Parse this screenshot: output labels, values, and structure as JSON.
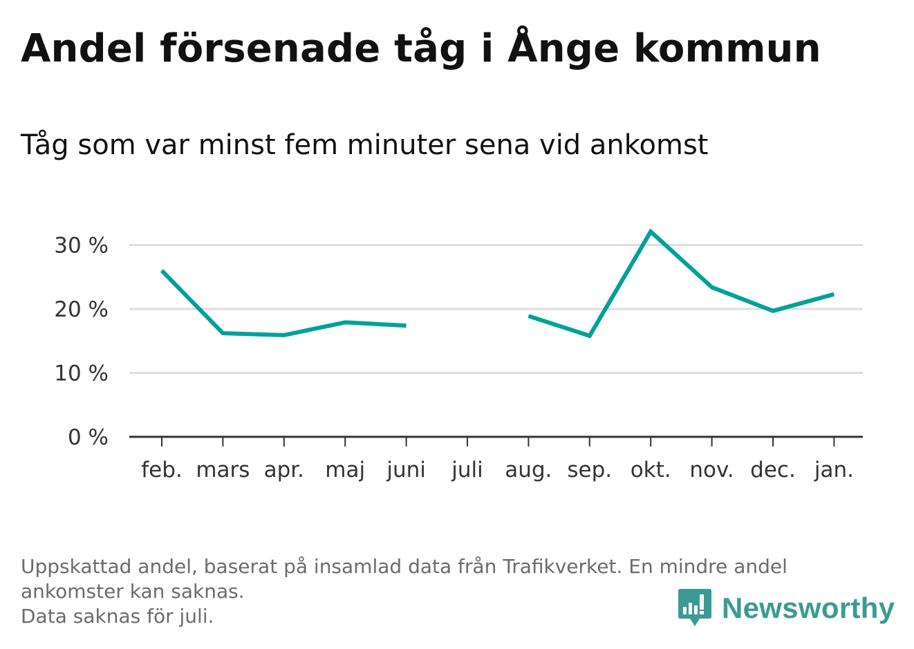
{
  "chart_data": {
    "type": "line",
    "title": "Andel försenade tåg i Ånge kommun",
    "subtitle": "Tåg som var minst fem minuter sena vid ankomst",
    "categories": [
      "feb.",
      "mars",
      "apr.",
      "maj",
      "juni",
      "juli",
      "aug.",
      "sep.",
      "okt.",
      "nov.",
      "dec.",
      "jan."
    ],
    "series": [
      {
        "values": [
          26.0,
          16.2,
          15.9,
          17.9,
          17.4,
          null,
          18.9,
          15.8,
          32.1,
          23.4,
          19.7,
          22.3
        ],
        "color": "#00a19a"
      }
    ],
    "yticks": [
      0,
      10,
      20,
      30
    ],
    "ytick_labels": [
      "0 %",
      "10 %",
      "20 %",
      "30 %"
    ],
    "ylim": [
      0,
      35
    ],
    "grid": true,
    "axis_color": "#333333",
    "grid_color": "#dddddd"
  },
  "footnote": {
    "line1": "Uppskattad andel, baserat på insamlad data från Trafikverket. En mindre andel",
    "line2": "ankomster kan saknas.",
    "line3": "Data saknas för juli."
  },
  "logo": {
    "text": "Newsworthy",
    "icon": "newsworthy-logo-icon",
    "color": "#3b9a94"
  }
}
